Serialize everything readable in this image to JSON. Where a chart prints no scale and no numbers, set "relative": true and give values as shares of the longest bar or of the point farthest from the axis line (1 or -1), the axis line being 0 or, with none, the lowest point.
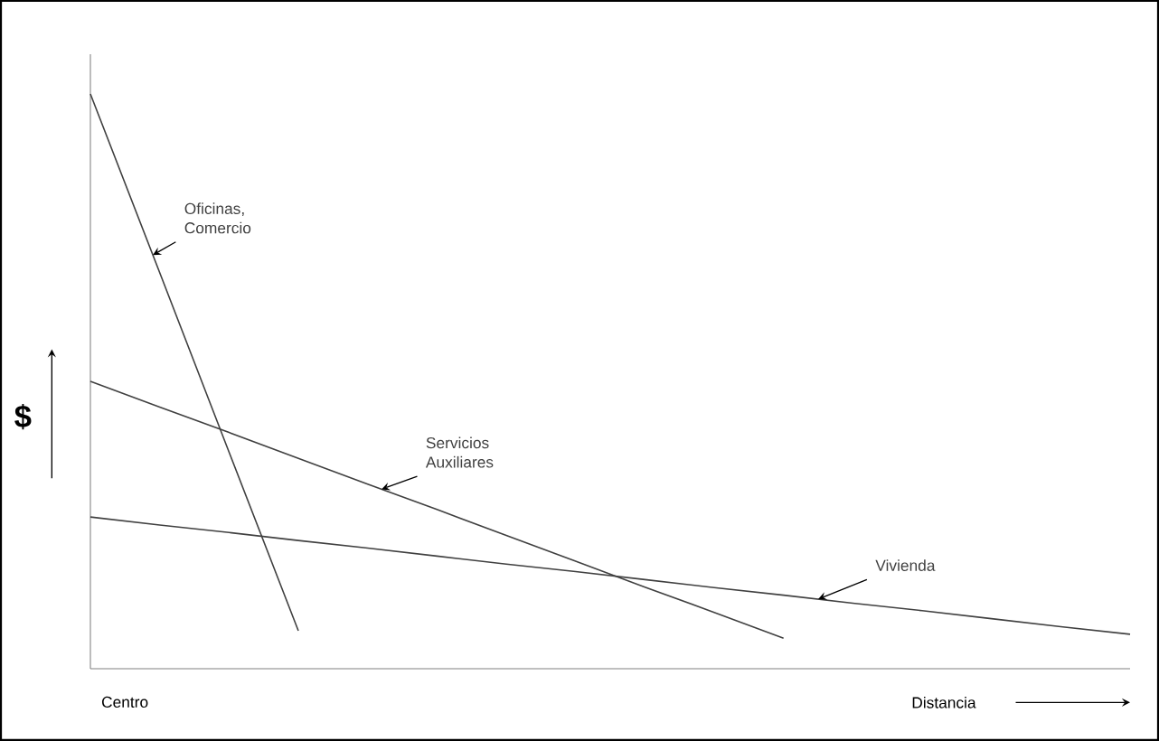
{
  "chart_data": {
    "type": "line",
    "relative": true,
    "xlabel": "Distancia",
    "ylabel": "$",
    "annotations": [
      "Centro"
    ],
    "categories": [
      null,
      null,
      null,
      null,
      null,
      null,
      null,
      null,
      null,
      null,
      null,
      null,
      null,
      null,
      null,
      null
    ],
    "series": [
      {
        "name": "Oficinas, Comercio",
        "color": "#404040",
        "values": [
          1,
          0.689,
          0.377,
          0.066,
          null,
          null,
          null,
          null,
          null,
          null,
          null,
          null,
          null,
          null,
          null,
          null
        ]
      },
      {
        "name": "Servicios Auxiliares",
        "color": "#404040",
        "values": [
          0.5,
          0.455,
          0.411,
          0.366,
          0.321,
          0.277,
          0.232,
          0.187,
          0.142,
          0.098,
          0.053,
          null,
          null,
          null,
          null,
          null
        ]
      },
      {
        "name": "Vivienda",
        "color": "#404040",
        "values": [
          0.264,
          0.25,
          0.237,
          0.223,
          0.21,
          0.196,
          0.182,
          0.169,
          0.155,
          0.141,
          0.128,
          0.114,
          0.101,
          0.087,
          0.073,
          0.06
        ]
      }
    ]
  }
}
